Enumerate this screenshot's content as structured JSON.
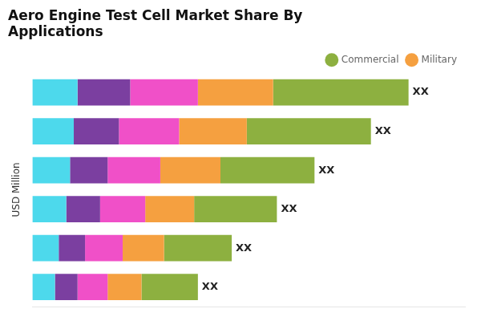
{
  "chart_data": {
    "type": "bar",
    "orientation": "horizontal",
    "stacked": true,
    "title": "Aero Engine Test Cell Market Share By\nApplications",
    "ylabel": "USD Million",
    "categories": [
      null,
      null,
      null,
      null,
      null,
      null
    ],
    "series": [
      {
        "color": "#4DD9EC",
        "values": [
          0.12,
          0.11,
          0.1,
          0.09,
          0.07,
          0.06
        ]
      },
      {
        "color": "#7B3FA0",
        "values": [
          0.14,
          0.12,
          0.1,
          0.09,
          0.07,
          0.06
        ]
      },
      {
        "color": "#F050C8",
        "values": [
          0.18,
          0.16,
          0.14,
          0.12,
          0.1,
          0.08
        ]
      },
      {
        "name": "Military",
        "color": "#F5A040",
        "values": [
          0.2,
          0.18,
          0.16,
          0.13,
          0.11,
          0.09
        ]
      },
      {
        "name": "Commercial",
        "color": "#8DB040",
        "values": [
          0.36,
          0.33,
          0.25,
          0.22,
          0.18,
          0.15
        ]
      }
    ],
    "annotations": [
      "XX",
      "XX",
      "XX",
      "XX",
      "XX",
      "XX"
    ],
    "xlim": [
      0,
      1.15
    ],
    "xticks": [],
    "grid": false,
    "legend": "upper right",
    "tick_labels": false
  }
}
